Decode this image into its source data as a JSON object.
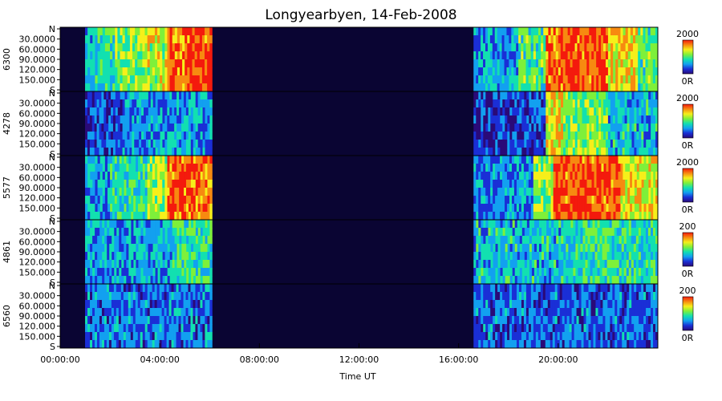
{
  "chart_data": {
    "type": "heatmap",
    "title": "Longyearbyen, 14-Feb-2008",
    "xlabel": "Time UT",
    "x_ticks": [
      "00:00:00",
      "04:00:00",
      "08:00:00",
      "12:00:00",
      "16:00:00",
      "20:00:00"
    ],
    "x_tick_hours": [
      0,
      4,
      8,
      12,
      16,
      20
    ],
    "x_range_hours": [
      0,
      24
    ],
    "colormap": "rainbow",
    "colors": {
      "background": "#0a0533",
      "rainbow": [
        "#2a0a78",
        "#1a2fd6",
        "#12a0f0",
        "#12e0b0",
        "#7ef03a",
        "#f6ef1a",
        "#f78a10",
        "#f41a0d"
      ]
    },
    "data_gaps_hours": [
      [
        0,
        1
      ],
      [
        6.1,
        16.6
      ]
    ],
    "panels": [
      {
        "wavelength": "6300",
        "y_ticks": [
          "N",
          "30.0000",
          "60.0000",
          "90.0000",
          "120.000",
          "150.000",
          "S"
        ],
        "colorbar_max": "2000",
        "colorbar_min": "0R",
        "activity": [
          {
            "t0": 1.0,
            "t1": 1.5,
            "level": 0.35
          },
          {
            "t0": 1.5,
            "t1": 2.2,
            "level": 0.45
          },
          {
            "t0": 2.2,
            "t1": 3.3,
            "level": 0.55
          },
          {
            "t0": 3.3,
            "t1": 4.3,
            "level": 0.65
          },
          {
            "t0": 4.3,
            "t1": 5.0,
            "level": 0.85
          },
          {
            "t0": 5.0,
            "t1": 6.1,
            "level": 0.95
          },
          {
            "t0": 16.6,
            "t1": 18.4,
            "level": 0.3
          },
          {
            "t0": 18.4,
            "t1": 19.5,
            "level": 0.5
          },
          {
            "t0": 19.5,
            "t1": 20.0,
            "level": 0.9
          },
          {
            "t0": 20.0,
            "t1": 22.0,
            "level": 0.95
          },
          {
            "t0": 22.0,
            "t1": 23.2,
            "level": 0.75
          },
          {
            "t0": 23.2,
            "t1": 24.0,
            "level": 0.5
          }
        ]
      },
      {
        "wavelength": "4278",
        "y_ticks": [
          "N",
          "30.0000",
          "60.0000",
          "90.0000",
          "120.000",
          "150.000",
          "S"
        ],
        "colorbar_max": "2000",
        "colorbar_min": "0R",
        "activity": [
          {
            "t0": 1.0,
            "t1": 2.5,
            "level": 0.15
          },
          {
            "t0": 2.5,
            "t1": 4.2,
            "level": 0.25
          },
          {
            "t0": 4.2,
            "t1": 6.1,
            "level": 0.3
          },
          {
            "t0": 16.6,
            "t1": 19.5,
            "level": 0.12
          },
          {
            "t0": 19.5,
            "t1": 20.2,
            "level": 0.7
          },
          {
            "t0": 20.2,
            "t1": 22.0,
            "level": 0.55
          },
          {
            "t0": 22.0,
            "t1": 24.0,
            "level": 0.35
          }
        ]
      },
      {
        "wavelength": "5577",
        "y_ticks": [
          "N",
          "30.0000",
          "60.0000",
          "90.0000",
          "120.000",
          "150.000",
          "S"
        ],
        "colorbar_max": "2000",
        "colorbar_min": "0R",
        "activity": [
          {
            "t0": 1.0,
            "t1": 2.0,
            "level": 0.3
          },
          {
            "t0": 2.0,
            "t1": 3.5,
            "level": 0.45
          },
          {
            "t0": 3.5,
            "t1": 4.3,
            "level": 0.6
          },
          {
            "t0": 4.3,
            "t1": 6.1,
            "level": 0.9
          },
          {
            "t0": 16.6,
            "t1": 19.0,
            "level": 0.25
          },
          {
            "t0": 19.0,
            "t1": 19.8,
            "level": 0.6
          },
          {
            "t0": 19.8,
            "t1": 22.5,
            "level": 0.95
          },
          {
            "t0": 22.5,
            "t1": 24.0,
            "level": 0.7
          }
        ]
      },
      {
        "wavelength": "4861",
        "y_ticks": [
          "N",
          "30.0000",
          "60.0000",
          "90.0000",
          "120.000",
          "150.000",
          "S"
        ],
        "colorbar_max": "200",
        "colorbar_min": "0R",
        "activity": [
          {
            "t0": 1.0,
            "t1": 4.5,
            "level": 0.3
          },
          {
            "t0": 4.5,
            "t1": 6.1,
            "level": 0.45
          },
          {
            "t0": 16.6,
            "t1": 20.5,
            "level": 0.35
          },
          {
            "t0": 20.5,
            "t1": 24.0,
            "level": 0.45
          }
        ]
      },
      {
        "wavelength": "6560",
        "y_ticks": [
          "N",
          "30.0000",
          "60.0000",
          "90.0000",
          "120.000",
          "150.000",
          "S"
        ],
        "colorbar_max": "200",
        "colorbar_min": "0R",
        "activity": [
          {
            "t0": 1.0,
            "t1": 6.1,
            "level": 0.22
          },
          {
            "t0": 16.6,
            "t1": 24.0,
            "level": 0.2
          }
        ]
      }
    ]
  }
}
